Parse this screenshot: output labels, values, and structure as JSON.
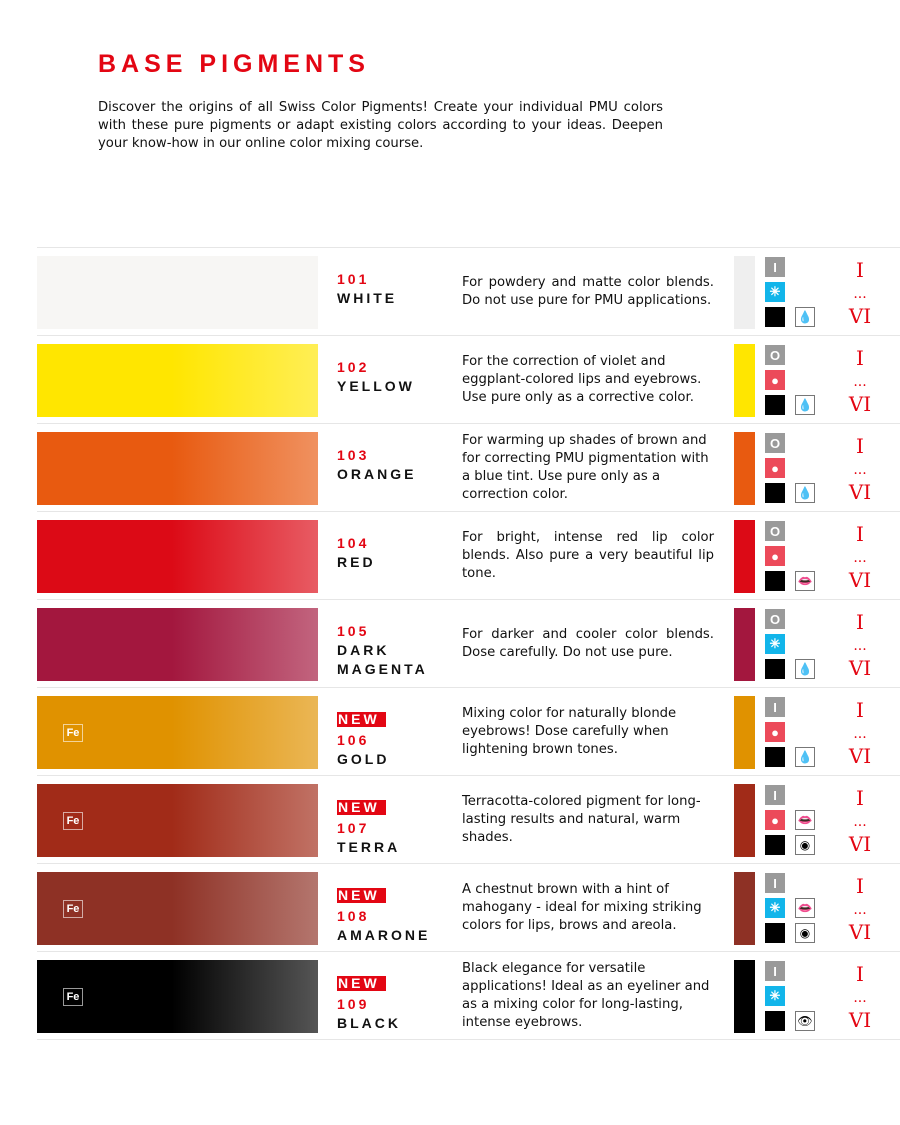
{
  "header": {
    "title": "BASE PIGMENTS",
    "intro": "Discover the origins of all Swiss Color Pigments! Create your individual PMU colors with these pure pigments or adapt existing colors according to your ideas. Deepen your know-how in our online color mixing course."
  },
  "range": {
    "from": "I",
    "dots": "...",
    "to": "VI"
  },
  "new_label": "NEW",
  "fe_label": "Fe",
  "pigments": [
    {
      "code": "101",
      "name": "WHITE",
      "new": false,
      "fe": false,
      "desc": "For powdery and matte color blends. Do not use pure for PMU applications.",
      "color": "#f7f6f4",
      "strip": "#efefef",
      "tone": "I",
      "temp": "cold",
      "uses": [
        "brows"
      ]
    },
    {
      "code": "102",
      "name": "YELLOW",
      "new": false,
      "fe": false,
      "desc": "For the correction of violet and eggplant-colored lips and eyebrows. Use pure only as a corrective color.",
      "color": "#ffe600",
      "strip": "#ffe600",
      "tone": "O",
      "temp": "warm",
      "uses": [
        "brows"
      ]
    },
    {
      "code": "103",
      "name": "ORANGE",
      "new": false,
      "fe": false,
      "desc": "For warming up shades of brown and for correcting PMU pigmentation with a blue tint. Use pure only as a correction color.",
      "color": "#e85a10",
      "strip": "#e85a10",
      "tone": "O",
      "temp": "warm",
      "uses": [
        "brows"
      ]
    },
    {
      "code": "104",
      "name": "RED",
      "new": false,
      "fe": false,
      "desc": "For bright, intense red lip color blends. Also pure a very beautiful lip tone.",
      "color": "#dc0a16",
      "strip": "#dc0a16",
      "tone": "O",
      "temp": "warm",
      "uses": [
        "lips"
      ]
    },
    {
      "code": "105",
      "name": "DARK MAGENTA",
      "new": false,
      "fe": false,
      "desc": "For darker and cooler color blends. Dose carefully. Do not use pure.",
      "color": "#a3173e",
      "strip": "#a3173e",
      "tone": "O",
      "temp": "cold",
      "uses": [
        "brows"
      ]
    },
    {
      "code": "106",
      "name": "GOLD",
      "new": true,
      "fe": true,
      "desc": "Mixing color for naturally blonde eyebrows! Dose carefully when lightening brown tones.",
      "color": "#e09200",
      "strip": "#e09200",
      "tone": "I",
      "temp": "warm",
      "uses": [
        "brows"
      ]
    },
    {
      "code": "107",
      "name": "TERRA",
      "new": true,
      "fe": true,
      "desc": "Terracotta-colored pigment for long-lasting results and natural, warm shades.",
      "color": "#a12b18",
      "strip": "#a12b18",
      "tone": "I",
      "temp": "warm",
      "uses": [
        "lips",
        "areola"
      ]
    },
    {
      "code": "108",
      "name": "AMARONE",
      "new": true,
      "fe": true,
      "desc": "A chestnut brown with a hint of mahogany - ideal for mixing striking colors for lips, brows and areola.",
      "color": "#8e3125",
      "strip": "#8e3125",
      "tone": "I",
      "temp": "cold",
      "uses": [
        "lips",
        "areola"
      ]
    },
    {
      "code": "109",
      "name": "BLACK",
      "new": true,
      "fe": true,
      "desc": "Black elegance for versatile applications! Ideal as an eyeliner and as a mixing color for long-lasting, intense eyebrows.",
      "color": "#000000",
      "strip": "#000000",
      "tone": "I",
      "temp": "cold",
      "uses": [
        "eyes"
      ]
    }
  ],
  "colors": {
    "accent": "#e30613",
    "warm": "#ec4a5a",
    "cold": "#12b5ea",
    "tone": "#9a9a9a"
  }
}
